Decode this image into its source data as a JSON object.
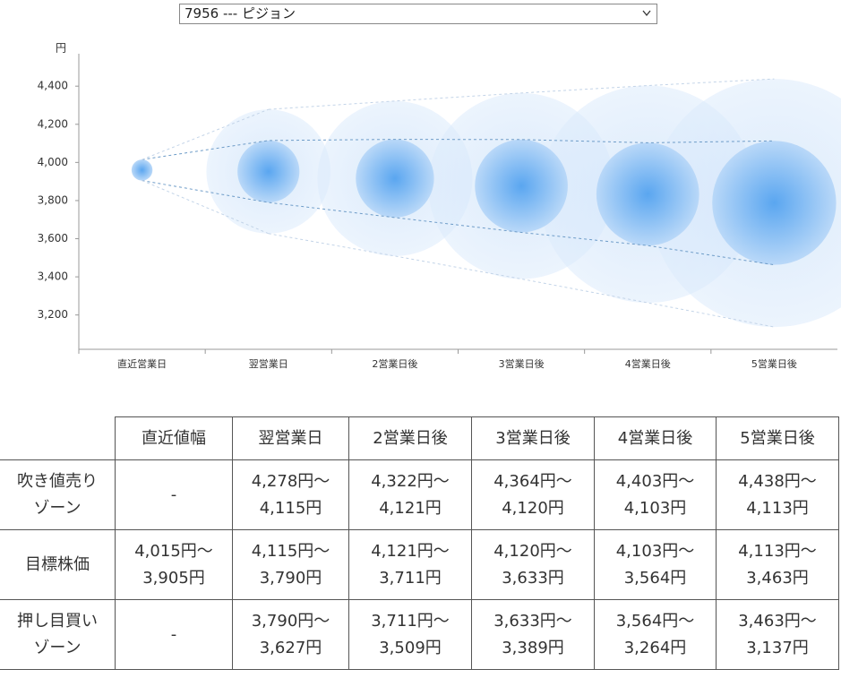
{
  "select": {
    "label": "7956 --- ピジョン"
  },
  "chart_data": {
    "type": "bubble",
    "y_unit": "円",
    "categories": [
      "直近営業日",
      "翌営業日",
      "2営業日後",
      "3営業日後",
      "4営業日後",
      "5営業日後"
    ],
    "target_high": [
      4015,
      4115,
      4121,
      4120,
      4103,
      4113
    ],
    "target_low": [
      3905,
      3790,
      3711,
      3633,
      3564,
      3463
    ],
    "zone_high": [
      null,
      4278,
      4322,
      4364,
      4403,
      4438
    ],
    "zone_low": [
      null,
      3627,
      3509,
      3389,
      3264,
      3137
    ],
    "ylim": [
      3020,
      4570
    ],
    "yticks": [
      {
        "value": 3200,
        "label": "3,200"
      },
      {
        "value": 3400,
        "label": "3,400"
      },
      {
        "value": 3600,
        "label": "3,600"
      },
      {
        "value": 3800,
        "label": "3,800"
      },
      {
        "value": 4000,
        "label": "4,000"
      },
      {
        "value": 4200,
        "label": "4,200"
      },
      {
        "value": 4400,
        "label": "4,400"
      }
    ]
  },
  "table": {
    "header": [
      "直近値幅",
      "翌営業日",
      "2営業日後",
      "3営業日後",
      "4営業日後",
      "5営業日後"
    ],
    "rows": [
      {
        "label": [
          "吹き値売り",
          "ゾーン"
        ],
        "cells": [
          [
            "-"
          ],
          [
            "4,278円～",
            "4,115円"
          ],
          [
            "4,322円～",
            "4,121円"
          ],
          [
            "4,364円～",
            "4,120円"
          ],
          [
            "4,403円～",
            "4,103円"
          ],
          [
            "4,438円～",
            "4,113円"
          ]
        ]
      },
      {
        "label": [
          "目標株価"
        ],
        "cells": [
          [
            "4,015円～",
            "3,905円"
          ],
          [
            "4,115円～",
            "3,790円"
          ],
          [
            "4,121円～",
            "3,711円"
          ],
          [
            "4,120円～",
            "3,633円"
          ],
          [
            "4,103円～",
            "3,564円"
          ],
          [
            "4,113円～",
            "3,463円"
          ]
        ]
      },
      {
        "label": [
          "押し目買い",
          "ゾーン"
        ],
        "cells": [
          [
            "-"
          ],
          [
            "3,790円～",
            "3,627円"
          ],
          [
            "3,711円～",
            "3,509円"
          ],
          [
            "3,633円～",
            "3,389円"
          ],
          [
            "3,564円～",
            "3,264円"
          ],
          [
            "3,463円～",
            "3,137円"
          ]
        ]
      }
    ]
  }
}
